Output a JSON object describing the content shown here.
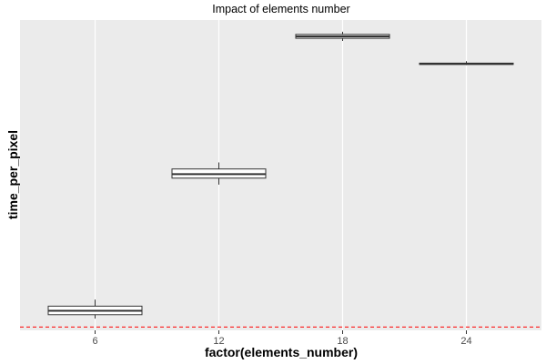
{
  "chart_data": {
    "type": "boxplot",
    "title": "Impact of elements number",
    "xlabel": "factor(elements_number)",
    "ylabel": "time_per_pixel",
    "categories": [
      "6",
      "12",
      "18",
      "24"
    ],
    "y_tick_labels": "hidden",
    "grid": "major vertical grid lines at categories, minor gridlines hidden",
    "panel_background": "#ebebeb",
    "box_fill": "#ffffff",
    "box_stroke": "#333333",
    "reference_line": {
      "style": "dashed",
      "color": "#ff0000",
      "value": 0.0
    },
    "boxes": [
      {
        "category": "6",
        "min": 0.13,
        "q1": 0.19,
        "median": 0.25,
        "q3": 0.32,
        "max": 0.42
      },
      {
        "category": "12",
        "min": 2.18,
        "q1": 2.28,
        "median": 2.34,
        "q3": 2.42,
        "max": 2.52
      },
      {
        "category": "18",
        "min": 4.38,
        "q1": 4.42,
        "median": 4.45,
        "q3": 4.48,
        "max": 4.52
      },
      {
        "category": "24",
        "min": 4.01,
        "q1": 4.02,
        "median": 4.03,
        "q3": 4.04,
        "max": 4.07
      }
    ],
    "ylim": [
      -0.05,
      4.7
    ]
  }
}
